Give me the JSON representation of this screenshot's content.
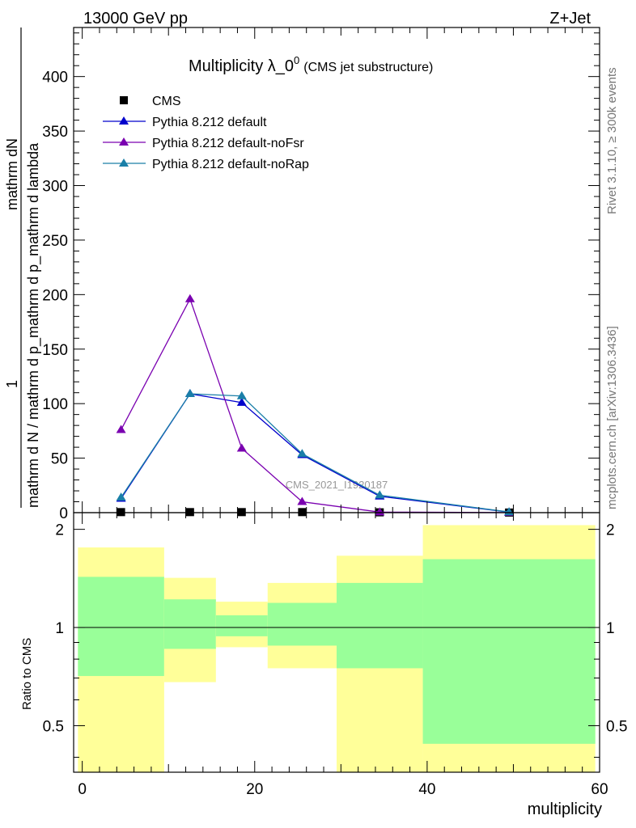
{
  "header": {
    "left": "13000 GeV pp",
    "right": "Z+Jet"
  },
  "side_labels": {
    "rivet": "Rivet 3.1.10, ≥ 300k events",
    "mcplots": "mcplots.cern.ch [arXiv:1306.3436]"
  },
  "title": {
    "main": "Multiplicity λ_0",
    "superscript": "0",
    "suffix": "(CMS jet substructure)"
  },
  "watermark": "CMS_2021_I1920187",
  "legend": [
    {
      "label": "CMS",
      "color": "#000000",
      "marker": "square"
    },
    {
      "label": "Pythia 8.212 default",
      "color": "#0000cc",
      "marker": "triangle"
    },
    {
      "label": "Pythia 8.212 default-noFsr",
      "color": "#7a00b0",
      "marker": "triangle"
    },
    {
      "label": "Pythia 8.212 default-noRap",
      "color": "#1a7fa8",
      "marker": "triangle"
    }
  ],
  "axis_labels": {
    "main_ylabel_numerator": "mathrm dN",
    "main_ylabel_numerator_sub": "1",
    "main_ylabel_denominator": "mathrm d N / mathrm d p_mathrm d p_mathrm d lambda",
    "ratio_ylabel": "Ratio to CMS",
    "xlabel": "multiplicity"
  },
  "chart_data": [
    {
      "type": "line",
      "panel": "main",
      "xlim": [
        -1,
        60
      ],
      "ylim": [
        0,
        445
      ],
      "xticks": [
        0,
        20,
        40,
        60
      ],
      "yticks": [
        0,
        50,
        100,
        150,
        200,
        250,
        300,
        350,
        400
      ],
      "grid": false,
      "legend_position": "top-left",
      "series": [
        {
          "name": "CMS",
          "x": [
            4.5,
            12.5,
            18.5,
            25.5,
            34.5,
            49.5
          ],
          "y": [
            0.5,
            0.5,
            0.5,
            0.5,
            0.3,
            0.1
          ]
        },
        {
          "name": "Pythia 8.212 default",
          "x": [
            4.5,
            12.5,
            18.5,
            25.5,
            34.5,
            49.5
          ],
          "y": [
            13,
            109,
            101,
            53,
            15,
            0.5
          ]
        },
        {
          "name": "Pythia 8.212 default-noFsr",
          "x": [
            4.5,
            12.5,
            18.5,
            25.5,
            34.5,
            49.5
          ],
          "y": [
            76,
            196,
            59,
            10,
            0.5,
            0.1
          ]
        },
        {
          "name": "Pythia 8.212 default-noRap",
          "x": [
            4.5,
            12.5,
            18.5,
            25.5,
            34.5,
            49.5
          ],
          "y": [
            14,
            109,
            107,
            54,
            16,
            0.6
          ]
        }
      ]
    },
    {
      "type": "area",
      "panel": "ratio",
      "xlim": [
        -1,
        60
      ],
      "ylim": [
        0.36,
        2.25
      ],
      "yticks": [
        0.5,
        1,
        2
      ],
      "reference_line": 1,
      "bins": [
        {
          "xlow": -0.5,
          "xhigh": 9.5,
          "green_low": 0.71,
          "green_high": 1.43,
          "yellow_low": 0.36,
          "yellow_high": 1.76
        },
        {
          "xlow": 9.5,
          "xhigh": 15.5,
          "green_low": 0.86,
          "green_high": 1.22,
          "yellow_low": 0.68,
          "yellow_high": 1.42
        },
        {
          "xlow": 15.5,
          "xhigh": 21.5,
          "green_low": 0.94,
          "green_high": 1.09,
          "yellow_low": 0.87,
          "yellow_high": 1.2
        },
        {
          "xlow": 21.5,
          "xhigh": 29.5,
          "green_low": 0.88,
          "green_high": 1.19,
          "yellow_low": 0.75,
          "yellow_high": 1.37
        },
        {
          "xlow": 29.5,
          "xhigh": 39.5,
          "green_low": 0.75,
          "green_high": 1.37,
          "yellow_low": 0.36,
          "yellow_high": 1.66
        },
        {
          "xlow": 39.5,
          "xhigh": 59.5,
          "green_low": 0.44,
          "green_high": 1.62,
          "yellow_low": 0.36,
          "yellow_high": 2.06
        }
      ],
      "colors": {
        "green": "#99ff99",
        "yellow": "#ffff99"
      }
    }
  ]
}
